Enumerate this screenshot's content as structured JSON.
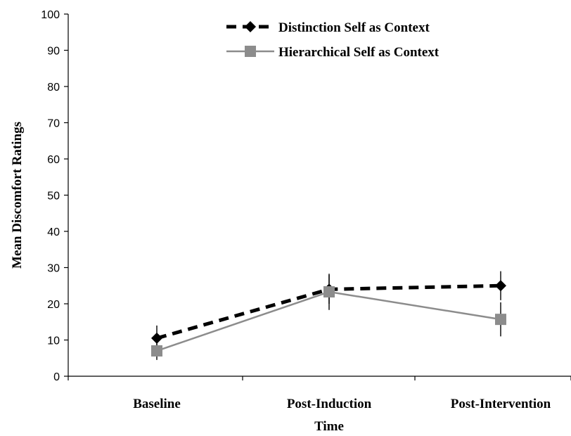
{
  "chart_data": {
    "type": "line",
    "title": "",
    "xlabel": "Time",
    "ylabel": "Mean Discomfort Ratings",
    "categories": [
      "Baseline",
      "Post-Induction",
      "Post-Intervention"
    ],
    "ylim": [
      0,
      100
    ],
    "yticks": [
      "0",
      "10",
      "20",
      "30",
      "40",
      "50",
      "60",
      "70",
      "80",
      "90",
      "100"
    ],
    "grid": false,
    "legend_position": "top-right",
    "series": [
      {
        "name": "Distinction Self as Context",
        "values": [
          10.5,
          24.0,
          25.0
        ],
        "error": [
          3.5,
          4.0,
          4.0
        ],
        "color": "#000000",
        "line_style": "dashed",
        "marker": "diamond"
      },
      {
        "name": "Hierarchical Self as Context",
        "values": [
          7.0,
          23.3,
          15.7
        ],
        "error": [
          2.5,
          5.0,
          4.7
        ],
        "color": "#8c8c8c",
        "line_style": "solid",
        "marker": "square"
      }
    ]
  }
}
